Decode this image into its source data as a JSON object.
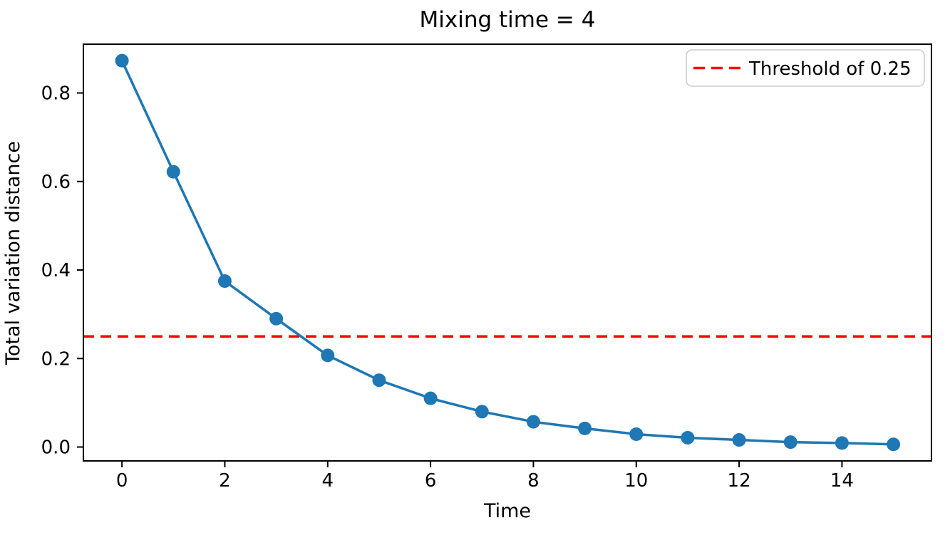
{
  "chart_data": {
    "type": "line",
    "title": "Mixing time = 4",
    "xlabel": "Time",
    "ylabel": "Total variation distance",
    "x": [
      0,
      1,
      2,
      3,
      4,
      5,
      6,
      7,
      8,
      9,
      10,
      11,
      12,
      13,
      14,
      15
    ],
    "series": [
      {
        "name": "Total variation distance",
        "color": "#1f77b4",
        "marker": "circle",
        "values": [
          0.873,
          0.622,
          0.375,
          0.29,
          0.207,
          0.151,
          0.11,
          0.08,
          0.057,
          0.042,
          0.029,
          0.021,
          0.016,
          0.011,
          0.009,
          0.006
        ]
      }
    ],
    "threshold": {
      "value": 0.25,
      "label": "Threshold of 0.25",
      "color": "#ff0000",
      "style": "dashed"
    },
    "xticks": [
      0,
      2,
      4,
      6,
      8,
      10,
      12,
      14
    ],
    "yticks": [
      0.0,
      0.2,
      0.4,
      0.6,
      0.8
    ],
    "xlim": [
      -0.75,
      15.74
    ],
    "ylim": [
      -0.0314,
      0.9103
    ],
    "grid": false,
    "legend_position": "upper right",
    "legend_entries": [
      "Threshold of 0.25"
    ],
    "colors": {
      "series_blue": "#1f77b4",
      "threshold_red": "#ff0000",
      "axis": "#000000",
      "legend_border": "#cccccc",
      "background": "#ffffff"
    }
  }
}
